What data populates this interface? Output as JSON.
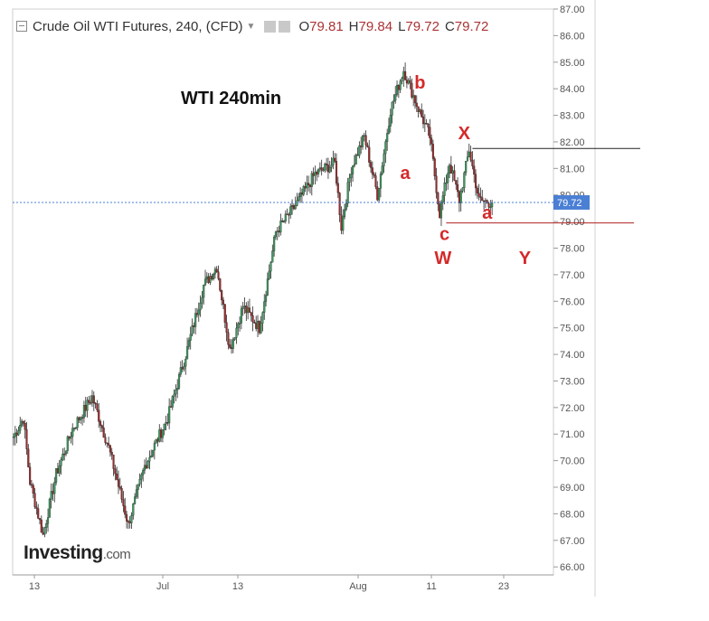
{
  "header": {
    "title": "Crude Oil WTI Futures, 240, (CFD)",
    "o_label": "O",
    "o_value": "79.81",
    "h_label": "H",
    "h_value": "79.84",
    "l_label": "L",
    "l_value": "79.72",
    "c_label": "C",
    "c_value": "79.72"
  },
  "watermark": {
    "brand": "Investing",
    "suffix": ".com"
  },
  "chart_data": {
    "type": "candlestick",
    "annotation_title": "WTI 240min",
    "y_range": [
      65.7,
      87.0
    ],
    "y_ticks": [
      "66.00",
      "67.00",
      "68.00",
      "69.00",
      "70.00",
      "71.00",
      "72.00",
      "73.00",
      "74.00",
      "75.00",
      "76.00",
      "77.00",
      "78.00",
      "79.00",
      "80.00",
      "81.00",
      "82.00",
      "83.00",
      "84.00",
      "85.00",
      "86.00",
      "87.00"
    ],
    "x_labels": [
      "13",
      "Jul",
      "13",
      "Aug",
      "11",
      "23"
    ],
    "last_price": {
      "value": 79.72,
      "label": "79.72"
    },
    "waypoints": [
      [
        0,
        70.9
      ],
      [
        6,
        71.6
      ],
      [
        10,
        69.2
      ],
      [
        18,
        67.2
      ],
      [
        26,
        69.5
      ],
      [
        36,
        71.2
      ],
      [
        48,
        72.4
      ],
      [
        58,
        70.5
      ],
      [
        70,
        67.6
      ],
      [
        80,
        69.8
      ],
      [
        94,
        71.6
      ],
      [
        106,
        74.2
      ],
      [
        116,
        76.6
      ],
      [
        124,
        77.3
      ],
      [
        132,
        74.2
      ],
      [
        140,
        75.8
      ],
      [
        150,
        75.0
      ],
      [
        160,
        78.6
      ],
      [
        172,
        79.6
      ],
      [
        184,
        80.8
      ],
      [
        196,
        81.2
      ],
      [
        200,
        78.8
      ],
      [
        206,
        81.0
      ],
      [
        214,
        82.2
      ],
      [
        222,
        80.0
      ],
      [
        230,
        83.2
      ],
      [
        238,
        84.7
      ],
      [
        246,
        83.4
      ],
      [
        254,
        82.2
      ],
      [
        260,
        79.3
      ],
      [
        266,
        81.2
      ],
      [
        272,
        79.8
      ],
      [
        278,
        81.7
      ],
      [
        284,
        79.8
      ],
      [
        292,
        79.7
      ]
    ],
    "annotations": [
      {
        "text": "b",
        "price": 84.0,
        "bar": 248,
        "color": "#d42a2a"
      },
      {
        "text": "a",
        "price": 80.6,
        "bar": 239,
        "color": "#d42a2a"
      },
      {
        "text": "X",
        "price": 82.1,
        "bar": 275,
        "color": "#d42a2a"
      },
      {
        "text": "a",
        "price": 79.1,
        "bar": 289,
        "color": "#d42a2a"
      },
      {
        "text": "c",
        "price": 78.3,
        "bar": 263,
        "color": "#d42a2a"
      },
      {
        "text": "W",
        "price": 77.4,
        "bar": 262,
        "color": "#d42a2a"
      },
      {
        "text": "Y",
        "price": 77.4,
        "bar": 312,
        "color": "#d42a2a"
      }
    ],
    "hlines": [
      {
        "price": 81.75,
        "from_bar": 280,
        "to": "beyond-axis",
        "color": "#222222"
      },
      {
        "price": 78.95,
        "from_bar": 264,
        "to": "beyond-axis",
        "color": "#b02020"
      }
    ],
    "colors": {
      "up": "#3a9a5c",
      "down": "#9c2a2a",
      "last_price_bg": "#4a7fd4",
      "grid": "#e8e8e8",
      "axis_text": "#555555"
    }
  }
}
